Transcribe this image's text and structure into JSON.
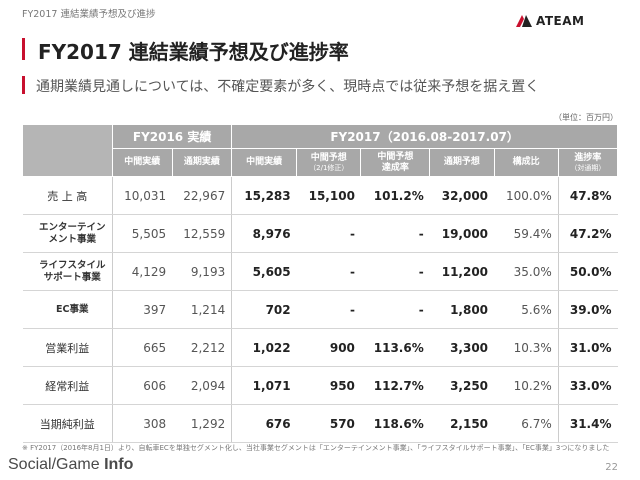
{
  "header": {
    "breadcrumb": "FY2017 連結業績予想及び進捗",
    "title": "FY2017 連結業績予想及び進捗率",
    "logo_text": "ATEAM"
  },
  "subtitle": "通期業績見通しについては、不確定要素が多く、現時点では従来予想を据え置く",
  "unit": "（単位：百万円）",
  "table": {
    "groups": [
      "FY2016 実績",
      "FY2017（2016.08-2017.07）"
    ],
    "columns": [
      {
        "label": "中間実績"
      },
      {
        "label": "通期実績"
      },
      {
        "label": "中間実績"
      },
      {
        "label": "中間予想",
        "note": "（2/1修正）"
      },
      {
        "label": "中間予想\n達成率"
      },
      {
        "label": "通期予想"
      },
      {
        "label": "構成比"
      },
      {
        "label": "進捗率",
        "note": "（対通期）"
      }
    ],
    "rows": [
      {
        "label": "売 上 高",
        "values": [
          "10,031",
          "22,967",
          "15,283",
          "15,100",
          "101.2%",
          "32,000",
          "100.0%",
          "47.8%"
        ]
      },
      {
        "label": "エンターテイン\nメント事業",
        "values": [
          "5,505",
          "12,559",
          "8,976",
          "-",
          "-",
          "19,000",
          "59.4%",
          "47.2%"
        ]
      },
      {
        "label": "ライフスタイル\nサポート事業",
        "values": [
          "4,129",
          "9,193",
          "5,605",
          "-",
          "-",
          "11,200",
          "35.0%",
          "50.0%"
        ]
      },
      {
        "label": "EC事業",
        "values": [
          "397",
          "1,214",
          "702",
          "-",
          "-",
          "1,800",
          "5.6%",
          "39.0%"
        ]
      },
      {
        "label": "営業利益",
        "values": [
          "665",
          "2,212",
          "1,022",
          "900",
          "113.6%",
          "3,300",
          "10.3%",
          "31.0%"
        ]
      },
      {
        "label": "経常利益",
        "values": [
          "606",
          "2,094",
          "1,071",
          "950",
          "112.7%",
          "3,250",
          "10.2%",
          "33.0%"
        ]
      },
      {
        "label": "当期純利益",
        "values": [
          "308",
          "1,292",
          "676",
          "570",
          "118.6%",
          "2,150",
          "6.7%",
          "31.4%"
        ]
      }
    ]
  },
  "footnote": "※ FY2017（2016年8月1日）より、自転車ECを単独セグメント化し、当社事業セグメントは「エンターテインメント事業」、「ライフスタイルサポート事業」、「EC事業」3つになりました",
  "brand": {
    "part1": "Social",
    "part2": "Game",
    "part3": "Info"
  },
  "page_number": "22",
  "colors": {
    "accent": "#c8102e",
    "header_bg": "#a8a8a8"
  }
}
